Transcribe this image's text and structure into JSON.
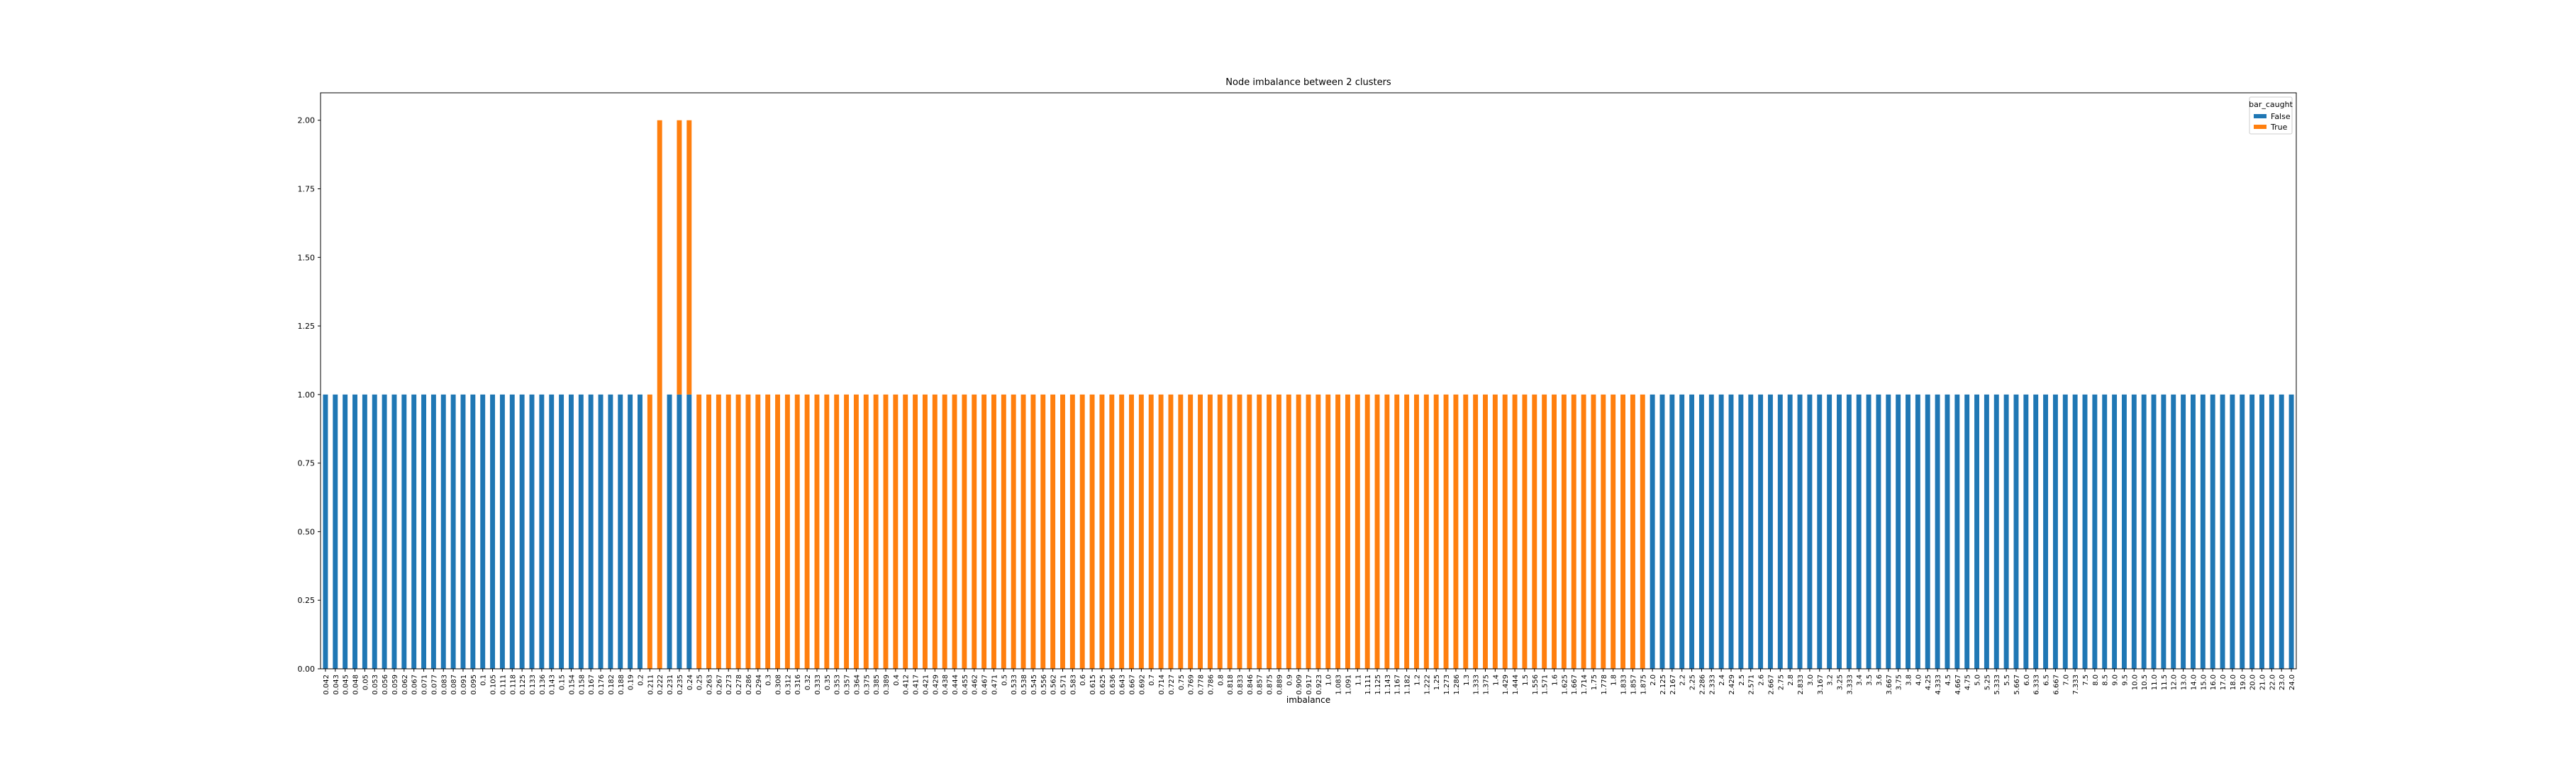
{
  "chart_data": {
    "type": "stacked_bar",
    "title": "Node imbalance between 2 clusters",
    "x_label": "imbalance",
    "legend_title": "bar_caught",
    "legend_position": "upper right",
    "categories": [
      "0.042",
      "0.043",
      "0.045",
      "0.048",
      "0.05",
      "0.053",
      "0.056",
      "0.059",
      "0.062",
      "0.067",
      "0.071",
      "0.077",
      "0.083",
      "0.087",
      "0.091",
      "0.095",
      "0.1",
      "0.105",
      "0.111",
      "0.118",
      "0.125",
      "0.133",
      "0.136",
      "0.143",
      "0.15",
      "0.154",
      "0.158",
      "0.167",
      "0.176",
      "0.182",
      "0.188",
      "0.19",
      "0.2",
      "0.211",
      "0.222",
      "0.231",
      "0.235",
      "0.24",
      "0.25",
      "0.263",
      "0.267",
      "0.273",
      "0.278",
      "0.286",
      "0.294",
      "0.3",
      "0.308",
      "0.312",
      "0.316",
      "0.32",
      "0.333",
      "0.35",
      "0.353",
      "0.357",
      "0.364",
      "0.375",
      "0.385",
      "0.389",
      "0.4",
      "0.412",
      "0.417",
      "0.421",
      "0.429",
      "0.438",
      "0.444",
      "0.455",
      "0.462",
      "0.467",
      "0.471",
      "0.5",
      "0.533",
      "0.538",
      "0.545",
      "0.556",
      "0.562",
      "0.571",
      "0.583",
      "0.6",
      "0.615",
      "0.625",
      "0.636",
      "0.643",
      "0.667",
      "0.692",
      "0.7",
      "0.714",
      "0.727",
      "0.75",
      "0.769",
      "0.778",
      "0.786",
      "0.8",
      "0.818",
      "0.833",
      "0.846",
      "0.857",
      "0.875",
      "0.889",
      "0.9",
      "0.909",
      "0.917",
      "0.923",
      "1.0",
      "1.083",
      "1.091",
      "1.1",
      "1.111",
      "1.125",
      "1.143",
      "1.167",
      "1.182",
      "1.2",
      "1.222",
      "1.25",
      "1.273",
      "1.286",
      "1.3",
      "1.333",
      "1.375",
      "1.4",
      "1.429",
      "1.444",
      "1.5",
      "1.556",
      "1.571",
      "1.6",
      "1.625",
      "1.667",
      "1.714",
      "1.75",
      "1.778",
      "1.8",
      "1.833",
      "1.857",
      "1.875",
      "2.0",
      "2.125",
      "2.167",
      "2.2",
      "2.25",
      "2.286",
      "2.333",
      "2.4",
      "2.429",
      "2.5",
      "2.571",
      "2.6",
      "2.667",
      "2.75",
      "2.8",
      "2.833",
      "3.0",
      "3.167",
      "3.2",
      "3.25",
      "3.333",
      "3.4",
      "3.5",
      "3.6",
      "3.667",
      "3.75",
      "3.8",
      "4.0",
      "4.25",
      "4.333",
      "4.5",
      "4.667",
      "4.75",
      "5.0",
      "5.25",
      "5.333",
      "5.5",
      "5.667",
      "6.0",
      "6.333",
      "6.5",
      "6.667",
      "7.0",
      "7.333",
      "7.5",
      "8.0",
      "8.5",
      "9.0",
      "9.5",
      "10.0",
      "10.5",
      "11.0",
      "11.5",
      "12.0",
      "13.0",
      "14.0",
      "15.0",
      "16.0",
      "17.0",
      "18.0",
      "19.0",
      "20.0",
      "21.0",
      "22.0",
      "23.0",
      "24.0"
    ],
    "series": [
      {
        "name": "False",
        "color": "#1f77b4",
        "values": [
          1,
          1,
          1,
          1,
          1,
          1,
          1,
          1,
          1,
          1,
          1,
          1,
          1,
          1,
          1,
          1,
          1,
          1,
          1,
          1,
          1,
          1,
          1,
          1,
          1,
          1,
          1,
          1,
          1,
          1,
          1,
          1,
          1,
          null,
          null,
          1,
          1,
          1,
          null,
          null,
          null,
          null,
          null,
          null,
          null,
          null,
          null,
          null,
          null,
          null,
          null,
          null,
          null,
          null,
          null,
          null,
          null,
          null,
          null,
          null,
          null,
          null,
          null,
          null,
          null,
          null,
          null,
          null,
          null,
          null,
          null,
          null,
          null,
          null,
          null,
          null,
          null,
          null,
          null,
          null,
          null,
          null,
          null,
          null,
          null,
          null,
          null,
          null,
          null,
          null,
          null,
          null,
          null,
          null,
          null,
          null,
          null,
          null,
          null,
          null,
          null,
          null,
          null,
          null,
          null,
          null,
          null,
          null,
          null,
          null,
          null,
          null,
          null,
          null,
          null,
          null,
          null,
          null,
          null,
          null,
          null,
          null,
          null,
          null,
          null,
          null,
          null,
          null,
          null,
          null,
          null,
          null,
          null,
          null,
          null,
          1,
          1,
          1,
          1,
          1,
          1,
          1,
          1,
          1,
          1,
          1,
          1,
          1,
          1,
          1,
          1,
          1,
          1,
          1,
          1,
          1,
          1,
          1,
          1,
          1,
          1,
          1,
          1,
          1,
          1,
          1,
          1,
          1,
          1,
          1,
          1,
          1,
          1,
          1,
          1,
          1,
          1,
          1,
          1,
          1,
          1,
          1,
          1,
          1,
          1,
          1,
          1,
          1,
          1,
          1,
          1,
          1,
          1,
          1,
          1,
          1,
          1,
          1,
          1,
          1,
          1
        ]
      },
      {
        "name": "True",
        "color": "#ff7f0e",
        "values": [
          null,
          null,
          null,
          null,
          null,
          null,
          null,
          null,
          null,
          null,
          null,
          null,
          null,
          null,
          null,
          null,
          null,
          null,
          null,
          null,
          null,
          null,
          null,
          null,
          null,
          null,
          null,
          null,
          null,
          null,
          null,
          null,
          null,
          1,
          2,
          null,
          1,
          1,
          1,
          1,
          1,
          1,
          1,
          1,
          1,
          1,
          1,
          1,
          1,
          1,
          1,
          1,
          1,
          1,
          1,
          1,
          1,
          1,
          1,
          1,
          1,
          1,
          1,
          1,
          1,
          1,
          1,
          1,
          1,
          1,
          1,
          1,
          1,
          1,
          1,
          1,
          1,
          1,
          1,
          1,
          1,
          1,
          1,
          1,
          1,
          1,
          1,
          1,
          1,
          1,
          1,
          1,
          1,
          1,
          1,
          1,
          1,
          1,
          1,
          1,
          1,
          1,
          1,
          1,
          1,
          1,
          1,
          1,
          1,
          1,
          1,
          1,
          1,
          1,
          1,
          1,
          1,
          1,
          1,
          1,
          1,
          1,
          1,
          1,
          1,
          1,
          1,
          1,
          1,
          1,
          1,
          1,
          1,
          1,
          1,
          null,
          null,
          null,
          null,
          null,
          null,
          null,
          null,
          null,
          null,
          null,
          null,
          null,
          null,
          null,
          null,
          null,
          null,
          null,
          null,
          null,
          null,
          null,
          null,
          null,
          null,
          null,
          null,
          null,
          null,
          null,
          null,
          null,
          null,
          null,
          null,
          null,
          null,
          null,
          null,
          null,
          null,
          null,
          null,
          null,
          null,
          null,
          null,
          null,
          null,
          null,
          null,
          null,
          null,
          null,
          null,
          null,
          null,
          null,
          null,
          null,
          null,
          null,
          null,
          null,
          null
        ]
      }
    ],
    "ylim": [
      0,
      2.1
    ],
    "yticks": [
      {
        "value": 0,
        "label": "0.00"
      },
      {
        "value": 0.25,
        "label": "0.25"
      },
      {
        "value": 0.5,
        "label": "0.50"
      },
      {
        "value": 0.75,
        "label": "0.75"
      },
      {
        "value": 1,
        "label": "1.00"
      },
      {
        "value": 1.25,
        "label": "1.25"
      },
      {
        "value": 1.5,
        "label": "1.50"
      },
      {
        "value": 1.75,
        "label": "1.75"
      },
      {
        "value": 2,
        "label": "2.00"
      }
    ],
    "grid": false
  }
}
